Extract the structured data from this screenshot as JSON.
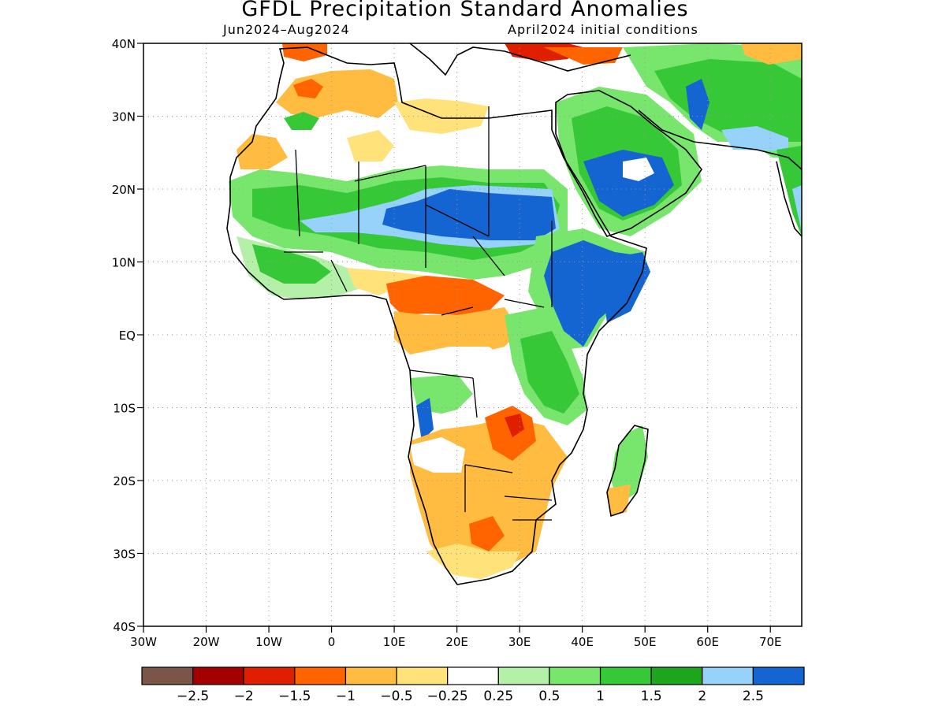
{
  "header": {
    "title": "GFDL Precipitation Standard Anomalies",
    "period": "Jun2024–Aug2024",
    "initial_conditions": "April2024 initial conditions"
  },
  "map": {
    "lon_range": [
      -30,
      75
    ],
    "lat_range": [
      -40,
      40
    ],
    "lat_ticks": [
      {
        "value": 40,
        "label": "40N"
      },
      {
        "value": 30,
        "label": "30N"
      },
      {
        "value": 20,
        "label": "20N"
      },
      {
        "value": 10,
        "label": "10N"
      },
      {
        "value": 0,
        "label": "EQ"
      },
      {
        "value": -10,
        "label": "10S"
      },
      {
        "value": -20,
        "label": "20S"
      },
      {
        "value": -30,
        "label": "30S"
      },
      {
        "value": -40,
        "label": "40S"
      }
    ],
    "lon_ticks": [
      {
        "value": -30,
        "label": "30W"
      },
      {
        "value": -20,
        "label": "20W"
      },
      {
        "value": -10,
        "label": "10W"
      },
      {
        "value": 0,
        "label": "0"
      },
      {
        "value": 10,
        "label": "10E"
      },
      {
        "value": 20,
        "label": "20E"
      },
      {
        "value": 30,
        "label": "30E"
      },
      {
        "value": 40,
        "label": "40E"
      },
      {
        "value": 50,
        "label": "50E"
      },
      {
        "value": 60,
        "label": "60E"
      },
      {
        "value": 70,
        "label": "70E"
      }
    ],
    "grid": true
  },
  "colorbar": {
    "colors": [
      "#7a5548",
      "#a50000",
      "#df1f00",
      "#ff6400",
      "#ffbc40",
      "#ffe27a",
      "#ffffff",
      "#b4f0a8",
      "#78e66c",
      "#36c836",
      "#1ea51e",
      "#96d2fa",
      "#1464d2"
    ],
    "labels": [
      "−2.5",
      "−2",
      "−1.5",
      "−1",
      "−0.5",
      "−0.25",
      "0.25",
      "0.5",
      "1",
      "1.5",
      "2",
      "2.5"
    ]
  }
}
